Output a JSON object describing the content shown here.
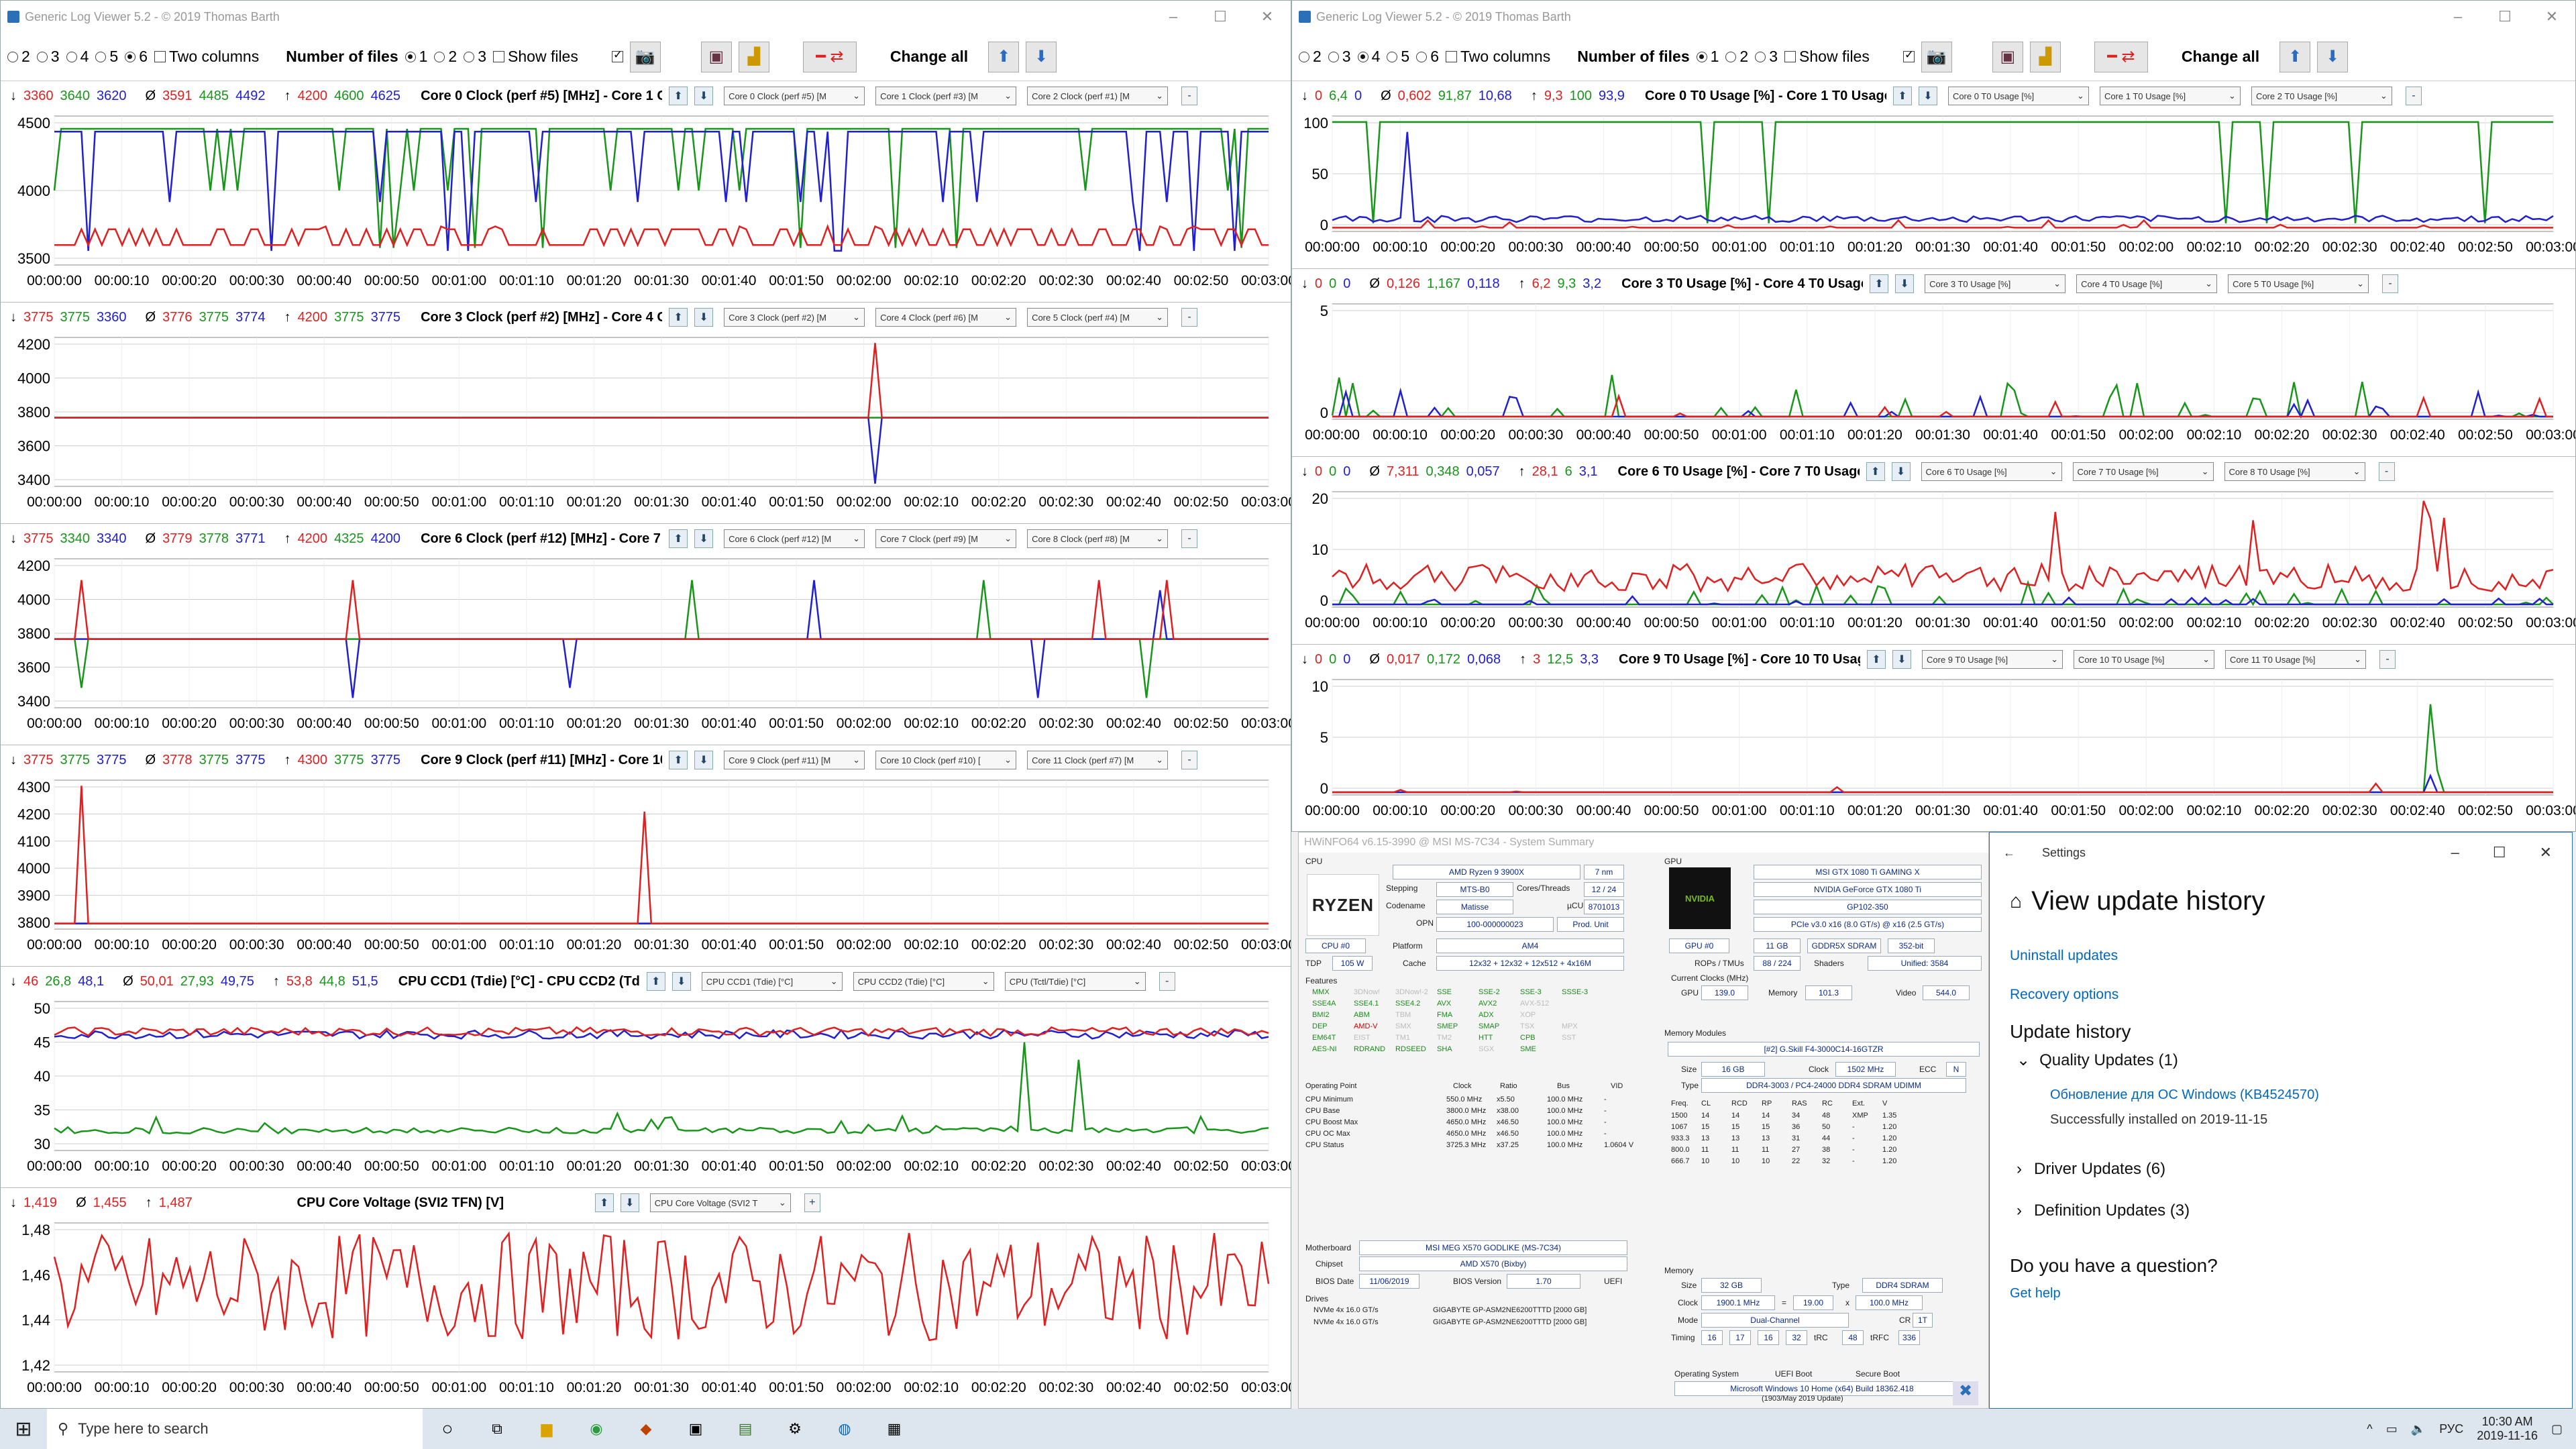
{
  "left_window": {
    "title": "Generic Log Viewer 5.2 - © 2019 Thomas Barth",
    "radios": [
      "2",
      "3",
      "4",
      "5",
      "6"
    ],
    "selected_radio": "6",
    "two_columns": "Two columns",
    "num_files_label": "Number of files",
    "file_radios": [
      "1",
      "2",
      "3"
    ],
    "show_files": "Show files",
    "change_all": "Change all"
  },
  "right_window": {
    "title": "Generic Log Viewer 5.2 - © 2019 Thomas Barth",
    "radios": [
      "2",
      "3",
      "4",
      "5",
      "6"
    ],
    "selected_radio": "4",
    "two_columns": "Two columns",
    "num_files_label": "Number of files",
    "file_radios": [
      "1",
      "2",
      "3"
    ],
    "show_files": "Show files",
    "change_all": "Change all"
  },
  "left_panels": [
    {
      "min": [
        "3360",
        "3640",
        "3620"
      ],
      "avg": [
        "3591",
        "4485",
        "4492"
      ],
      "max": [
        "4200",
        "4600",
        "4625"
      ],
      "title": "Core 0 Clock (perf #5) [MHz] - Core 1 Clock (per",
      "selects": [
        "Core 0 Clock (perf #5) [M",
        "Core 1 Clock (perf #3) [M",
        "Core 2 Clock (perf #1) [M"
      ],
      "yticks": [
        "4500",
        "4000",
        "3500"
      ]
    },
    {
      "min": [
        "3775",
        "3775",
        "3360"
      ],
      "avg": [
        "3776",
        "3775",
        "3774"
      ],
      "max": [
        "4200",
        "3775",
        "3775"
      ],
      "title": "Core 3 Clock (perf #2) [MHz] - Core 4 Clock (per",
      "selects": [
        "Core 3 Clock (perf #2) [M",
        "Core 4 Clock (perf #6) [M",
        "Core 5 Clock (perf #4) [M"
      ],
      "yticks": [
        "4200",
        "4000",
        "3800",
        "3600",
        "3400"
      ]
    },
    {
      "min": [
        "3775",
        "3340",
        "3340"
      ],
      "avg": [
        "3779",
        "3778",
        "3771"
      ],
      "max": [
        "4200",
        "4325",
        "4200"
      ],
      "title": "Core 6 Clock (perf #12) [MHz] - Core 7 Clock (pe",
      "selects": [
        "Core 6 Clock (perf #12) [M",
        "Core 7 Clock (perf #9) [M",
        "Core 8 Clock (perf #8) [M"
      ],
      "yticks": [
        "4200",
        "4000",
        "3800",
        "3600",
        "3400"
      ]
    },
    {
      "min": [
        "3775",
        "3775",
        "3775"
      ],
      "avg": [
        "3778",
        "3775",
        "3775"
      ],
      "max": [
        "4300",
        "3775",
        "3775"
      ],
      "title": "Core 9 Clock (perf #11) [MHz] - Core 10 Clock (p",
      "selects": [
        "Core 9 Clock (perf #11) [M",
        "Core 10 Clock (perf #10) [",
        "Core 11 Clock (perf #7) [M"
      ],
      "yticks": [
        "4300",
        "4200",
        "4100",
        "4000",
        "3900",
        "3800"
      ]
    },
    {
      "min": [
        "46",
        "26,8",
        "48,1"
      ],
      "avg": [
        "50,01",
        "27,93",
        "49,75"
      ],
      "max": [
        "53,8",
        "44,8",
        "51,5"
      ],
      "title": "CPU CCD1 (Tdie) [°C] - CPU CCD2 (Tdie) [°C] - CPU (",
      "selects": [
        "CPU CCD1 (Tdie) [°C]",
        "CPU CCD2 (Tdie) [°C]",
        "CPU (Tctl/Tdie) [°C]"
      ],
      "yticks": [
        "50",
        "45",
        "40",
        "35",
        "30"
      ]
    },
    {
      "min": [
        "1,419"
      ],
      "avg": [
        "1,455"
      ],
      "max": [
        "1,487"
      ],
      "title": "CPU Core Voltage (SVI2 TFN) [V]",
      "selects": [
        "CPU Core Voltage (SVI2 T"
      ],
      "yticks": [
        "1,48",
        "1,46",
        "1,44",
        "1,42"
      ]
    }
  ],
  "right_panels": [
    {
      "min": [
        "0",
        "6,4",
        "0"
      ],
      "avg": [
        "0,602",
        "91,87",
        "10,68"
      ],
      "max": [
        "9,3",
        "100",
        "93,9"
      ],
      "title": "Core 0 T0 Usage [%] - Core 1 T0 Usage [%] - Core 2 T0 Usa",
      "selects": [
        "Core 0 T0 Usage [%]",
        "Core 1 T0 Usage [%]",
        "Core 2 T0 Usage [%]"
      ],
      "yticks": [
        "100",
        "50",
        "0"
      ]
    },
    {
      "min": [
        "0",
        "0",
        "0"
      ],
      "avg": [
        "0,126",
        "1,167",
        "0,118"
      ],
      "max": [
        "6,2",
        "9,3",
        "3,2"
      ],
      "title": "Core 3 T0 Usage [%] - Core 4 T0 Usage [%] - Core 5 T0 Usage",
      "selects": [
        "Core 3 T0 Usage [%]",
        "Core 4 T0 Usage [%]",
        "Core 5 T0 Usage [%]"
      ],
      "yticks": [
        "5",
        "0"
      ]
    },
    {
      "min": [
        "0",
        "0",
        "0"
      ],
      "avg": [
        "7,311",
        "0,348",
        "0,057"
      ],
      "max": [
        "28,1",
        "6",
        "3,1"
      ],
      "title": "Core 6 T0 Usage [%] - Core 7 T0 Usage [%] - Core 8 T0 Usage [",
      "selects": [
        "Core 6 T0 Usage [%]",
        "Core 7 T0 Usage [%]",
        "Core 8 T0 Usage [%]"
      ],
      "yticks": [
        "20",
        "10",
        "0"
      ]
    },
    {
      "min": [
        "0",
        "0",
        "0"
      ],
      "avg": [
        "0,017",
        "0,172",
        "0,068"
      ],
      "max": [
        "3",
        "12,5",
        "3,3"
      ],
      "title": "Core 9 T0 Usage [%] - Core 10 T0 Usage [%] - Core 11 T0 Usag",
      "selects": [
        "Core 9 T0 Usage [%]",
        "Core 10 T0 Usage [%]",
        "Core 11 T0 Usage [%]"
      ],
      "yticks": [
        "10",
        "5",
        "0"
      ]
    }
  ],
  "time_ticks": [
    "00:00:00",
    "00:00:10",
    "00:00:20",
    "00:00:30",
    "00:00:40",
    "00:00:50",
    "00:01:00",
    "00:01:10",
    "00:01:20",
    "00:01:30",
    "00:01:40",
    "00:01:50",
    "00:02:00",
    "00:02:10",
    "00:02:20",
    "00:02:30",
    "00:02:40",
    "00:02:50",
    "00:03:00"
  ],
  "hwinfo": {
    "title": "HWiNFO64 v6.15-3990 @ MSI MS-7C34 - System Summary",
    "cpu_label": "CPU",
    "cpu_name": "AMD Ryzen 9 3900X",
    "nm": "7 nm",
    "stepping_label": "Stepping",
    "stepping": "MTS-B0",
    "cores_label": "Cores/Threads",
    "cores": "12 / 24",
    "codename_label": "Codename",
    "codename": "Matisse",
    "ucu_label": "µCU",
    "ucu": "8701013",
    "opn_label": "OPN",
    "opn": "100-000000023",
    "prod": "Prod. Unit",
    "cpu_sel": "CPU #0",
    "platform_label": "Platform",
    "platform": "AM4",
    "tdp_label": "TDP",
    "tdp": "105 W",
    "cache_label": "Cache",
    "cache": "12x32 + 12x32 + 12x512 + 4x16M",
    "features_label": "Features",
    "features": [
      "MMX",
      "3DNow!",
      "3DNow!-2",
      "SSE",
      "SSE-2",
      "SSE-3",
      "SSSE-3",
      "SSE4A",
      "SSE4.1",
      "SSE4.2",
      "AVX",
      "AVX2",
      "AVX-512",
      "",
      "BMI2",
      "ABM",
      "TBM",
      "FMA",
      "ADX",
      "XOP",
      "",
      "DEP",
      "AMD-V",
      "SMX",
      "SMEP",
      "SMAP",
      "TSX",
      "MPX",
      "EM64T",
      "EIST",
      "TM1",
      "TM2",
      "HTT",
      "CPB",
      "SST",
      "AES-NI",
      "RDRAND",
      "RDSEED",
      "SHA",
      "SGX",
      "SME",
      ""
    ],
    "op_headers": [
      "Operating Point",
      "Clock",
      "Ratio",
      "Bus",
      "VID"
    ],
    "op_rows": [
      [
        "CPU Minimum",
        "550.0 MHz",
        "x5.50",
        "100.0 MHz",
        "-"
      ],
      [
        "CPU Base",
        "3800.0 MHz",
        "x38.00",
        "100.0 MHz",
        "-"
      ],
      [
        "CPU Boost Max",
        "4650.0 MHz",
        "x46.50",
        "100.0 MHz",
        "-"
      ],
      [
        "CPU OC Max",
        "4650.0 MHz",
        "x46.50",
        "100.0 MHz",
        "-"
      ],
      [
        "CPU Status",
        "3725.3 MHz",
        "x37.25",
        "100.0 MHz",
        "1.0604 V"
      ]
    ],
    "mb_label": "Motherboard",
    "mb": "MSI MEG X570 GODLIKE (MS-7C34)",
    "chipset_label": "Chipset",
    "chipset": "AMD X570 (Bixby)",
    "bios_date_label": "BIOS Date",
    "bios_date": "11/06/2019",
    "bios_ver_label": "BIOS Version",
    "bios_ver": "1.70",
    "uefi": "UEFI",
    "drives_label": "Drives",
    "drives": [
      [
        "NVMe 4x 16.0 GT/s",
        "GIGABYTE GP-ASM2NE6200TTTD [2000 GB]"
      ],
      [
        "NVMe 4x 16.0 GT/s",
        "GIGABYTE GP-ASM2NE6200TTTD [2000 GB]"
      ]
    ],
    "gpu_label": "GPU",
    "gpu_name": "MSI GTX 1080 Ti GAMING X",
    "gpu_chip": "NVIDIA GeForce GTX 1080 Ti",
    "gpu_code": "GP102-350",
    "gpu_pcie": "PCIe v3.0 x16 (8.0 GT/s) @ x16 (2.5 GT/s)",
    "gpu_sel": "GPU #0",
    "vram": "11 GB",
    "vram_type": "GDDR5X SDRAM",
    "bus": "352-bit",
    "rops_label": "ROPs / TMUs",
    "rops": "88 / 224",
    "shaders_label": "Shaders",
    "shaders": "Unified: 3584",
    "clocks_label": "Current Clocks (MHz)",
    "gpu_clk_label": "GPU",
    "gpu_clk": "139.0",
    "mem_clk_label": "Memory",
    "mem_clk": "101.3",
    "video_clk_label": "Video",
    "video_clk": "544.0",
    "memmod_label": "Memory Modules",
    "memmod": "[#2] G.Skill F4-3000C14-16GTZR",
    "size_label": "Size",
    "size": "16 GB",
    "clock_label": "Clock",
    "clock": "1502 MHz",
    "ecc_label": "ECC",
    "ecc": "N",
    "type_label": "Type",
    "type": "DDR4-3003 / PC4-24000 DDR4 SDRAM UDIMM",
    "timing_headers": [
      "Freq.",
      "CL",
      "RCD",
      "RP",
      "RAS",
      "RC",
      "Ext.",
      "V"
    ],
    "timing_rows": [
      [
        "1500",
        "14",
        "14",
        "14",
        "34",
        "48",
        "XMP",
        "1.35"
      ],
      [
        "1067",
        "15",
        "15",
        "15",
        "36",
        "50",
        "-",
        "1.20"
      ],
      [
        "933.3",
        "13",
        "13",
        "13",
        "31",
        "44",
        "-",
        "1.20"
      ],
      [
        "800.0",
        "11",
        "11",
        "11",
        "27",
        "38",
        "-",
        "1.20"
      ],
      [
        "666.7",
        "10",
        "10",
        "10",
        "22",
        "32",
        "-",
        "1.20"
      ]
    ],
    "mem_label": "Memory",
    "msize": "32 GB",
    "mtype": "DDR4 SDRAM",
    "mclock": "1900.1 MHz",
    "meq": "=",
    "mratio": "19.00",
    "mx": "x",
    "mbus": "100.0 MHz",
    "mode_label": "Mode",
    "mode": "Dual-Channel",
    "cr_label": "CR",
    "cr": "1T",
    "timing_label": "Timing",
    "timings": [
      "16",
      "17",
      "16",
      "32",
      "tRC",
      "48",
      "tRFC",
      "336"
    ],
    "os_label": "Operating System",
    "uefi_boot": "UEFI Boot",
    "secure_boot": "Secure Boot",
    "os": "Microsoft Windows 10 Home (x64) Build 18362.418",
    "os2": "(1903/May 2019 Update)"
  },
  "settings": {
    "app": "Settings",
    "heading": "View update history",
    "uninstall": "Uninstall updates",
    "recovery": "Recovery options",
    "history": "Update history",
    "quality": "Quality Updates (1)",
    "kb": "Обновление для ОС Windows (KB4524570)",
    "installed": "Successfully installed on 2019-11-15",
    "driver": "Driver Updates (6)",
    "definition": "Definition Updates (3)",
    "question": "Do you have a question?",
    "help": "Get help"
  },
  "taskbar": {
    "search": "Type here to search",
    "lang": "РУС",
    "time": "10:30 AM",
    "date": "2019-11-16"
  },
  "colors": {
    "s1": "#e02020",
    "s2": "#17961a",
    "s3": "#2020d0",
    "accent": "#0067c0"
  }
}
